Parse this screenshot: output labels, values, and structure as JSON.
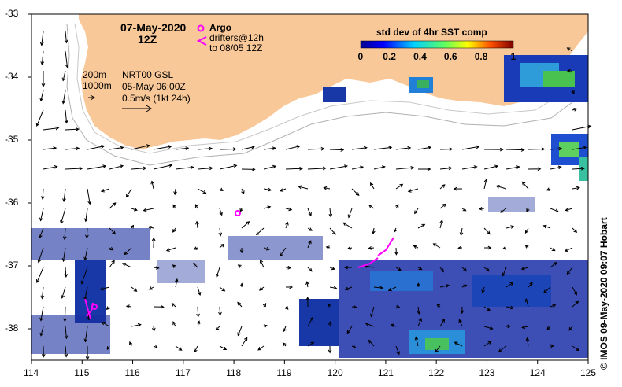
{
  "header": {
    "date": "07-May-2020",
    "time": "12Z"
  },
  "legend": {
    "argo_label": "Argo",
    "drifters_label": "drifters@12h",
    "drifters_sub": "to 08/05 12Z",
    "isobath_200": "200m",
    "isobath_1000": "1000m",
    "product": "NRT00 GSL",
    "product_time": "05-May 06:00Z",
    "scale_label": "0.5m/s (1kt 24h)"
  },
  "colorbar": {
    "title": "std dev of 4hr SST comp",
    "ticks": [
      "0",
      "0.2",
      "0.4",
      "0.6",
      "0.8",
      "1"
    ],
    "range": [
      0,
      1
    ]
  },
  "axes": {
    "lon_ticks": [
      "114",
      "115",
      "116",
      "117",
      "118",
      "119",
      "120",
      "121",
      "122",
      "123",
      "124",
      "125"
    ],
    "lat_ticks": [
      "-33",
      "-34",
      "-35",
      "-36",
      "-37",
      "-38"
    ],
    "lon_range": [
      114,
      125
    ],
    "lat_range": [
      -38.5,
      -33
    ]
  },
  "credit": "© IMOS 09-May-2020 09:07 Hobart",
  "colors": {
    "land": "#f9c898",
    "argo": "#ff00ff",
    "drifters": "#ff00ff"
  }
}
